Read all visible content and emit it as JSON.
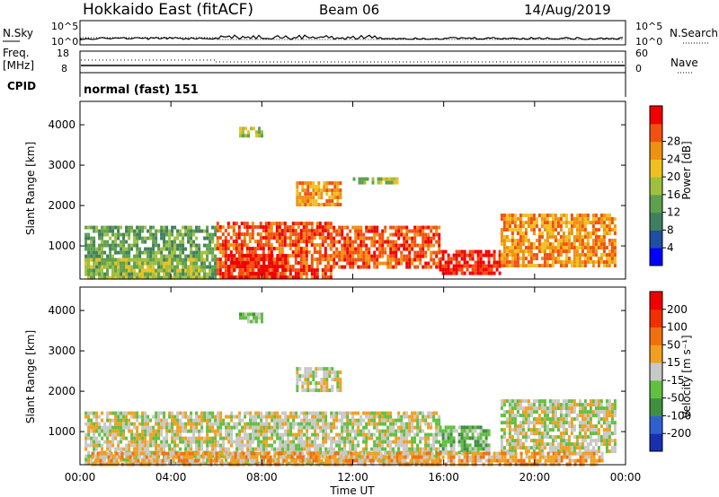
{
  "header": {
    "title": "Hokkaido East (fitACF)",
    "beam": "Beam 06",
    "date": "14/Aug/2019"
  },
  "top_panels": {
    "nsky_label": "N.Sky",
    "nsky_ticks": [
      "10^5",
      "10^0"
    ],
    "nsearch_label": "N.Search",
    "nsearch_ticks": [
      "10^5",
      "10^0"
    ],
    "freq_label": "Freq.",
    "freq_unit": "[MHz]",
    "freq_ticks": [
      "18",
      "8"
    ],
    "nave_label": "Nave",
    "nave_ticks": [
      "60",
      "0"
    ],
    "cpid_label": "CPID",
    "cpid_value": "normal (fast) 151"
  },
  "chart_data": [
    {
      "type": "heatmap",
      "panel": "power",
      "ylabel": "Slant Range [km]",
      "xlabel": "Time UT",
      "x_ticks": [
        "00:00",
        "04:00",
        "08:00",
        "12:00",
        "16:00",
        "20:00",
        "00:00"
      ],
      "xlim_hours": [
        0,
        24
      ],
      "ylim": [
        180,
        4580
      ],
      "y_ticks": [
        1000,
        2000,
        3000,
        4000
      ],
      "colorbar": {
        "label": "Power [dB]",
        "ticks": [
          "4",
          "8",
          "12",
          "16",
          "20",
          "24",
          "28"
        ],
        "colors": [
          "#0000ff",
          "#1e4fa0",
          "#3f7f5f",
          "#5fa04f",
          "#9fc03f",
          "#f0c020",
          "#f09010",
          "#f05010",
          "#f00000"
        ]
      },
      "regions": [
        {
          "t0": 0.2,
          "t1": 6.0,
          "r0": 250,
          "r1": 1500,
          "level": 3
        },
        {
          "t0": 0.2,
          "t1": 5.5,
          "r0": 250,
          "r1": 700,
          "level": 4
        },
        {
          "t0": 6.0,
          "t1": 11.0,
          "r0": 250,
          "r1": 1600,
          "level": 7
        },
        {
          "t0": 6.5,
          "t1": 9.0,
          "r0": 250,
          "r1": 800,
          "level": 8
        },
        {
          "t0": 11.0,
          "t1": 15.8,
          "r0": 500,
          "r1": 1500,
          "level": 7
        },
        {
          "t0": 15.8,
          "t1": 18.5,
          "r0": 350,
          "r1": 900,
          "level": 8
        },
        {
          "t0": 18.5,
          "t1": 23.5,
          "r0": 500,
          "r1": 1800,
          "level": 6
        },
        {
          "t0": 9.5,
          "t1": 11.5,
          "r0": 2000,
          "r1": 2600,
          "level": 6
        },
        {
          "t0": 7.0,
          "t1": 8.0,
          "r0": 3700,
          "r1": 3950,
          "level": 4
        },
        {
          "t0": 12.0,
          "t1": 14.0,
          "r0": 2550,
          "r1": 2700,
          "level": 4
        }
      ]
    },
    {
      "type": "heatmap",
      "panel": "velocity",
      "ylabel": "Slant Range [km]",
      "xlabel": "Time UT",
      "x_ticks": [
        "00:00",
        "04:00",
        "08:00",
        "12:00",
        "16:00",
        "20:00",
        "00:00"
      ],
      "xlim_hours": [
        0,
        24
      ],
      "ylim": [
        180,
        4580
      ],
      "y_ticks": [
        1000,
        2000,
        3000,
        4000
      ],
      "colorbar": {
        "label": "Velocity [m s⁻¹]",
        "ticks": [
          "200",
          "100",
          "50",
          "15",
          "-15",
          "-50",
          "-100",
          "-200"
        ],
        "colors": [
          "#1830b0",
          "#3060d0",
          "#3f8f3f",
          "#60c040",
          "#c8c8c8",
          "#f0a020",
          "#f07010",
          "#f03000",
          "#f00000"
        ]
      },
      "regions": [
        {
          "t0": 0.2,
          "t1": 15.8,
          "r0": 250,
          "r1": 1500,
          "level": 4
        },
        {
          "t0": 15.8,
          "t1": 18.0,
          "r0": 500,
          "r1": 1150,
          "level": 3
        },
        {
          "t0": 18.5,
          "t1": 23.5,
          "r0": 500,
          "r1": 1800,
          "level": 4
        },
        {
          "t0": 0.5,
          "t1": 23.0,
          "r0": 200,
          "r1": 500,
          "level": 5
        },
        {
          "t0": 9.5,
          "t1": 11.5,
          "r0": 2000,
          "r1": 2600,
          "level": 4
        },
        {
          "t0": 7.0,
          "t1": 8.0,
          "r0": 3700,
          "r1": 3950,
          "level": 3
        }
      ]
    }
  ]
}
